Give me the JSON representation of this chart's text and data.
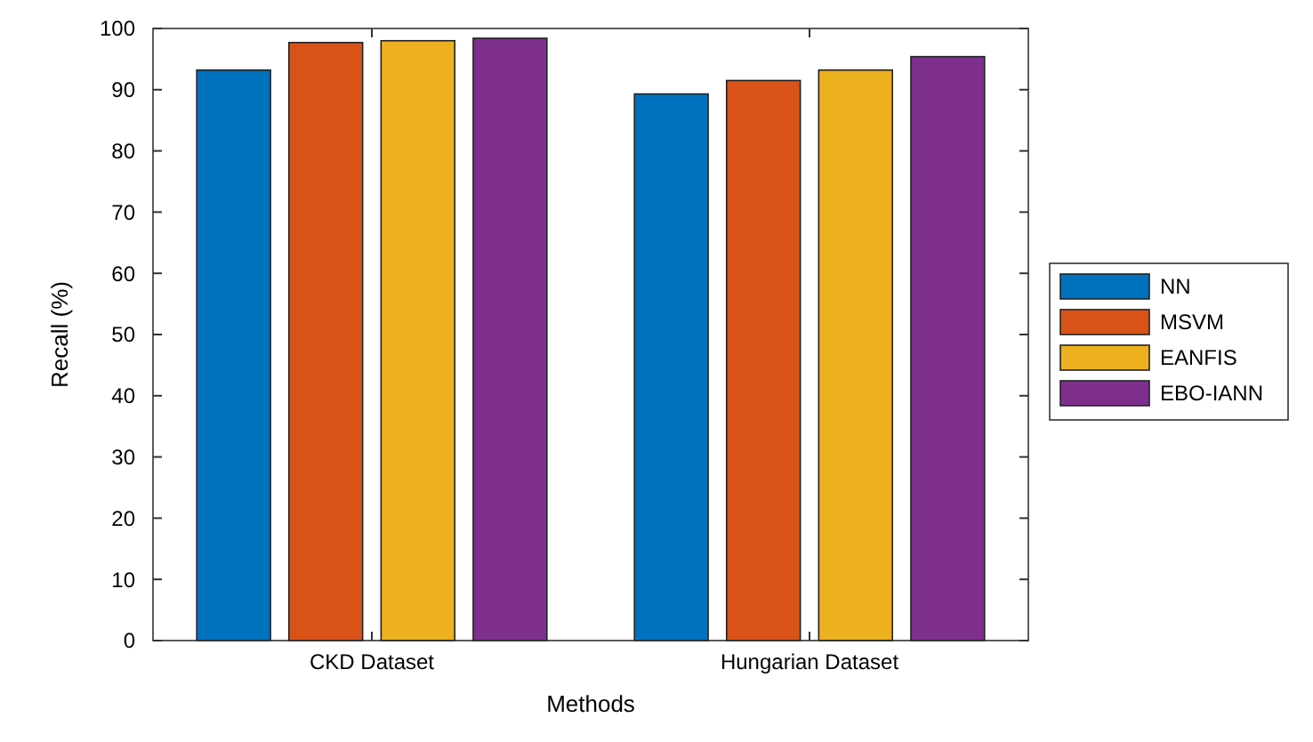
{
  "chart_data": {
    "type": "bar",
    "xlabel": "Methods",
    "ylabel": "Recall (%)",
    "categories": [
      "CKD Dataset",
      "Hungarian Dataset"
    ],
    "series": [
      {
        "name": "NN",
        "color": "#0072bd",
        "values": [
          93.2,
          89.3
        ]
      },
      {
        "name": "MSVM",
        "color": "#d95319",
        "values": [
          97.7,
          91.5
        ]
      },
      {
        "name": "EANFIS",
        "color": "#edb120",
        "values": [
          98,
          93.2
        ]
      },
      {
        "name": "EBO-IANN",
        "color": "#7e2f8e",
        "values": [
          98.4,
          95.4
        ]
      }
    ],
    "ylim": [
      0,
      100
    ],
    "yticks": [
      0,
      10,
      20,
      30,
      40,
      50,
      60,
      70,
      80,
      90,
      100
    ],
    "grid": false,
    "legend": "right"
  }
}
